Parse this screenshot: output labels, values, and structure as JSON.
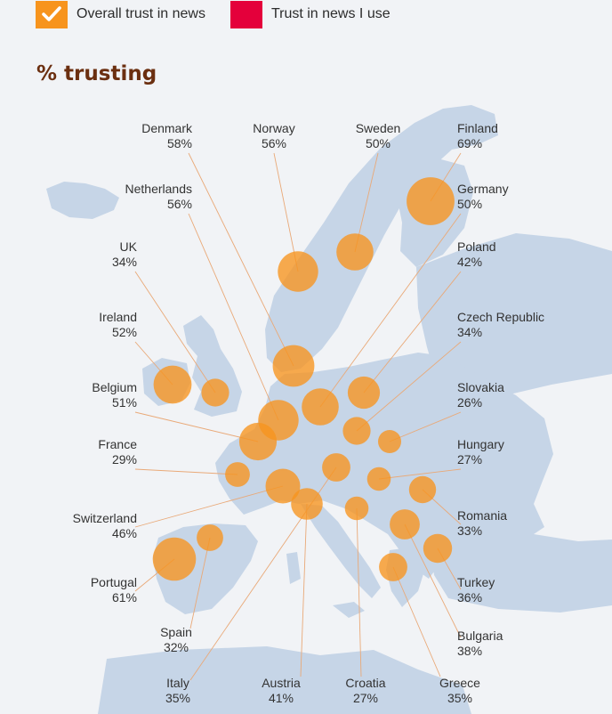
{
  "legend": [
    {
      "label": "Overall trust in news",
      "color": "#f7941d",
      "checked": true
    },
    {
      "label": "Trust in news I use",
      "color": "#e4003b",
      "checked": false
    }
  ],
  "chart_data": {
    "type": "bubble-map",
    "title": "% trusting",
    "series": "Overall trust in news",
    "unit": "%",
    "points": [
      {
        "country": "Denmark",
        "value": 58
      },
      {
        "country": "Norway",
        "value": 56
      },
      {
        "country": "Sweden",
        "value": 50
      },
      {
        "country": "Finland",
        "value": 69
      },
      {
        "country": "Netherlands",
        "value": 56
      },
      {
        "country": "Germany",
        "value": 50
      },
      {
        "country": "UK",
        "value": 34
      },
      {
        "country": "Poland",
        "value": 42
      },
      {
        "country": "Ireland",
        "value": 52
      },
      {
        "country": "Czech Republic",
        "value": 34
      },
      {
        "country": "Belgium",
        "value": 51
      },
      {
        "country": "Slovakia",
        "value": 26
      },
      {
        "country": "France",
        "value": 29
      },
      {
        "country": "Hungary",
        "value": 27
      },
      {
        "country": "Switzerland",
        "value": 46
      },
      {
        "country": "Romania",
        "value": 33
      },
      {
        "country": "Portugal",
        "value": 61
      },
      {
        "country": "Turkey",
        "value": 36
      },
      {
        "country": "Spain",
        "value": 32
      },
      {
        "country": "Bulgaria",
        "value": 38
      },
      {
        "country": "Italy",
        "value": 35
      },
      {
        "country": "Austria",
        "value": 41
      },
      {
        "country": "Croatia",
        "value": 27
      },
      {
        "country": "Greece",
        "value": 35
      }
    ]
  }
}
